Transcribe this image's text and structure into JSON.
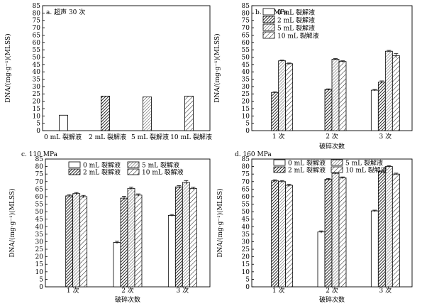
{
  "figure": {
    "unit_note": "DNA/(mg·g⁻¹)(MLSS)"
  },
  "chart_data": [
    {
      "panel": "a",
      "title": "a. 超声 30 次",
      "type": "bar",
      "ylabel": "DNA/(mg·g⁻¹)(MLSS)",
      "xlabel": "",
      "ylim": [
        0,
        85
      ],
      "yticks": [
        0,
        5,
        10,
        15,
        20,
        25,
        30,
        35,
        40,
        45,
        50,
        55,
        60,
        65,
        70,
        75,
        80,
        85
      ],
      "categories": [
        "0 mL 裂解液",
        "2 mL 裂解液",
        "5 mL 裂解液",
        "10 mL 裂解液"
      ],
      "values": [
        10.5,
        23.5,
        23,
        23.5
      ],
      "patterns": [
        "white",
        "dense",
        "light",
        "wide"
      ],
      "error_bars": false
    },
    {
      "panel": "b",
      "title": "b. 50 MPa",
      "type": "bar",
      "ylabel": "DNA/(mg·g⁻¹)(MLSS)",
      "xlabel": "破碎次数",
      "ylim": [
        0,
        85
      ],
      "yticks": [
        0,
        5,
        10,
        15,
        20,
        25,
        30,
        35,
        40,
        45,
        50,
        55,
        60,
        65,
        70,
        75,
        80,
        85
      ],
      "categories": [
        "1 次",
        "2 次",
        "3 次"
      ],
      "legend_position": "top-left",
      "series": [
        {
          "name": "0 mL 裂解液",
          "pattern": "white",
          "values": [
            0,
            0,
            27.5
          ],
          "errors": [
            0,
            0,
            0.5
          ]
        },
        {
          "name": "2 mL 裂解液",
          "pattern": "dense",
          "values": [
            26,
            28,
            33
          ],
          "errors": [
            0.4,
            0.4,
            0.8
          ]
        },
        {
          "name": "5 mL 裂解液",
          "pattern": "light",
          "values": [
            47.5,
            48.5,
            54
          ],
          "errors": [
            0.5,
            0.5,
            0.6
          ]
        },
        {
          "name": "10 mL 裂解液",
          "pattern": "wide",
          "values": [
            45.5,
            47,
            51
          ],
          "errors": [
            0.5,
            0.5,
            1.5
          ]
        }
      ]
    },
    {
      "panel": "c",
      "title": "c. 110 MPa",
      "type": "bar",
      "ylabel": "DNA/(mg·g⁻¹)(MLSS)",
      "xlabel": "破碎次数",
      "ylim": [
        0,
        85
      ],
      "yticks": [
        0,
        5,
        10,
        15,
        20,
        25,
        30,
        35,
        40,
        45,
        50,
        55,
        60,
        65,
        70,
        75,
        80,
        85
      ],
      "categories": [
        "1 次",
        "2 次",
        "3 次"
      ],
      "legend_position": "top",
      "series": [
        {
          "name": "0 mL 裂解液",
          "pattern": "white",
          "values": [
            0,
            29.5,
            47.5
          ],
          "errors": [
            0,
            0.8,
            0.6
          ]
        },
        {
          "name": "2 mL 裂解液",
          "pattern": "dense",
          "values": [
            60.5,
            59,
            66.5
          ],
          "errors": [
            0.8,
            1.2,
            0.8
          ]
        },
        {
          "name": "5 mL 裂解液",
          "pattern": "light",
          "values": [
            62,
            65.5,
            69.5
          ],
          "errors": [
            0.7,
            0.8,
            1.2
          ]
        },
        {
          "name": "10 mL 裂解液",
          "pattern": "wide",
          "values": [
            60,
            61,
            65.5
          ],
          "errors": [
            0.8,
            0.8,
            0.7
          ]
        }
      ]
    },
    {
      "panel": "d",
      "title": "d. 160 MPa",
      "type": "bar",
      "ylabel": "DNA/(mg·g⁻¹)(MLSS)",
      "xlabel": "破碎次数",
      "ylim": [
        0,
        85
      ],
      "yticks": [
        0,
        5,
        10,
        15,
        20,
        25,
        30,
        35,
        40,
        45,
        50,
        55,
        60,
        65,
        70,
        75,
        80,
        85
      ],
      "categories": [
        "1 次",
        "2 次",
        "3 次"
      ],
      "legend_position": "top",
      "series": [
        {
          "name": "0 mL 裂解液",
          "pattern": "white",
          "values": [
            0,
            36.5,
            50.5
          ],
          "errors": [
            0,
            0.7,
            0.5
          ]
        },
        {
          "name": "2 mL 裂解液",
          "pattern": "dense",
          "values": [
            70.5,
            71.5,
            76.5
          ],
          "errors": [
            0.7,
            0.6,
            0.6
          ]
        },
        {
          "name": "5 mL 裂解液",
          "pattern": "light",
          "values": [
            70,
            75.5,
            80
          ],
          "errors": [
            0.7,
            0.6,
            0.6
          ]
        },
        {
          "name": "10 mL 裂解液",
          "pattern": "wide",
          "values": [
            67.5,
            72.5,
            75
          ],
          "errors": [
            0.8,
            0.6,
            0.6
          ]
        }
      ]
    }
  ]
}
